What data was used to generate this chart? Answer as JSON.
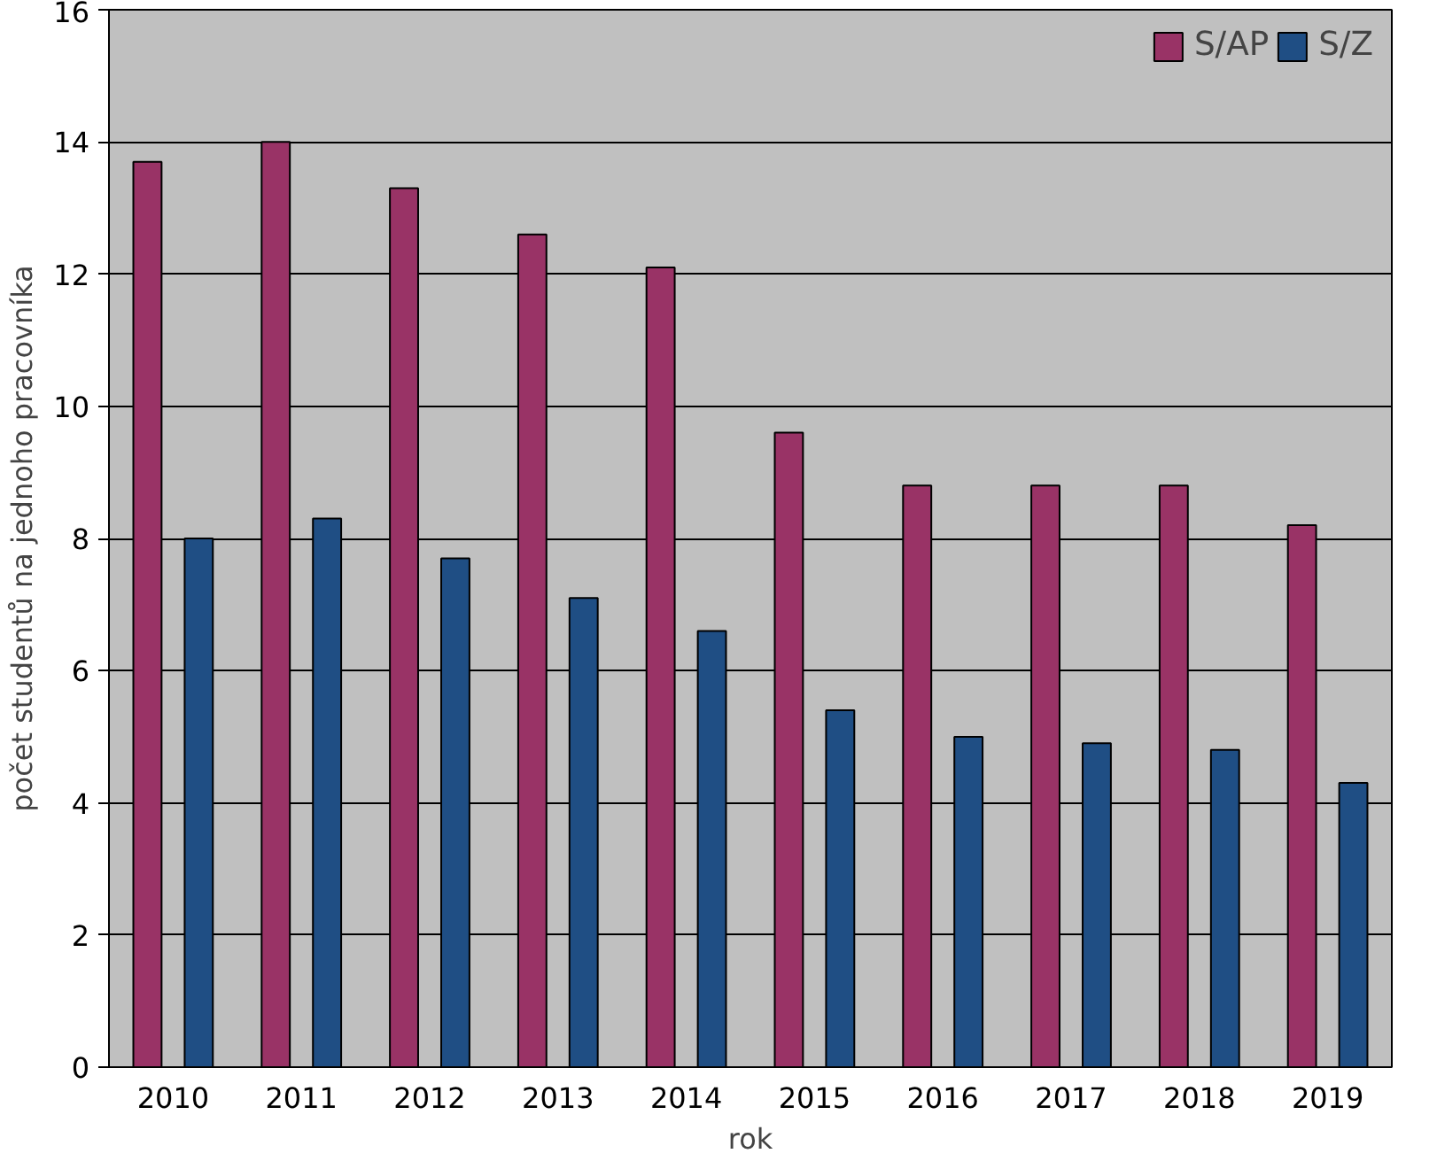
{
  "chart_data": {
    "type": "bar",
    "xlabel": "rok",
    "ylabel": "počet studentů na jednoho pracovníka",
    "categories": [
      "2010",
      "2011",
      "2012",
      "2013",
      "2014",
      "2015",
      "2016",
      "2017",
      "2018",
      "2019"
    ],
    "series": [
      {
        "name": "S/AP",
        "color": "#993366",
        "values": [
          13.7,
          14.0,
          13.3,
          12.6,
          12.1,
          9.6,
          8.8,
          8.8,
          8.8,
          8.2
        ]
      },
      {
        "name": "S/Z",
        "color": "#1f4e84",
        "values": [
          8.0,
          8.3,
          7.7,
          7.1,
          6.6,
          5.4,
          5.0,
          4.9,
          4.8,
          4.3
        ]
      }
    ],
    "ylim": [
      0,
      16
    ],
    "yticks": [
      0,
      2,
      4,
      6,
      8,
      10,
      12,
      14,
      16
    ],
    "grid": "y",
    "legend": "top right"
  }
}
